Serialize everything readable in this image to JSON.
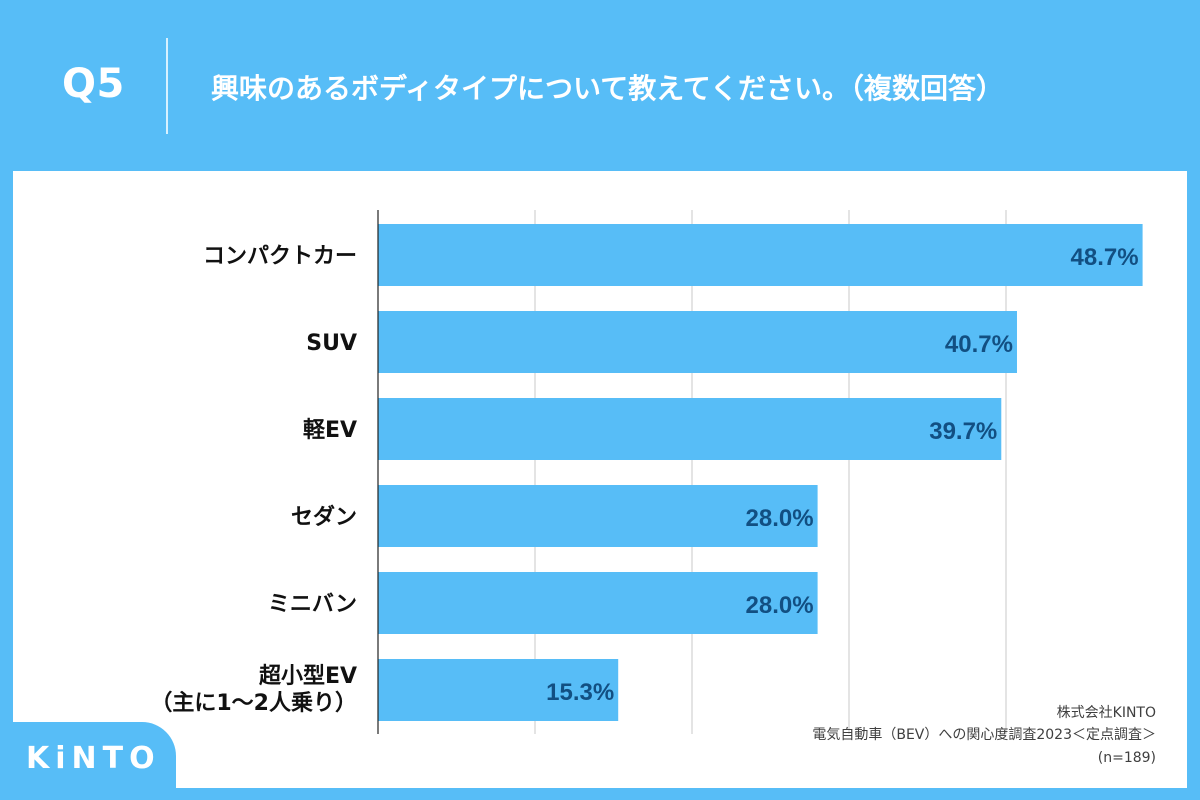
{
  "header": {
    "question_number": "Q5",
    "question_text": "興味のあるボディタイプについて教えてください。（複数回答）"
  },
  "chart_data": {
    "type": "bar",
    "orientation": "horizontal",
    "categories": [
      "コンパクトカー",
      "SUV",
      "軽EV",
      "セダン",
      "ミニバン",
      "超小型EV\n（主に1～2人乗り）"
    ],
    "values": [
      48.7,
      40.7,
      39.7,
      28.0,
      28.0,
      15.3
    ],
    "value_labels": [
      "48.7%",
      "40.7%",
      "39.7%",
      "28.0%",
      "28.0%",
      "15.3%"
    ],
    "xlim": [
      0,
      50
    ],
    "grid": true,
    "bar_color": "#57bdf7",
    "value_label_color": "#124f82"
  },
  "footer": {
    "logo_text": "KiNTO",
    "source_company": "株式会社KINTO",
    "source_survey": "電気自動車（BEV）への関心度調査2023＜定点調査＞",
    "sample_size": "(n=189)"
  },
  "colors": {
    "header_background": "#57bdf7",
    "card_background": "#ffffff",
    "grid": "#c9c9c9",
    "axis": "#222222",
    "label_text": "#111111"
  }
}
